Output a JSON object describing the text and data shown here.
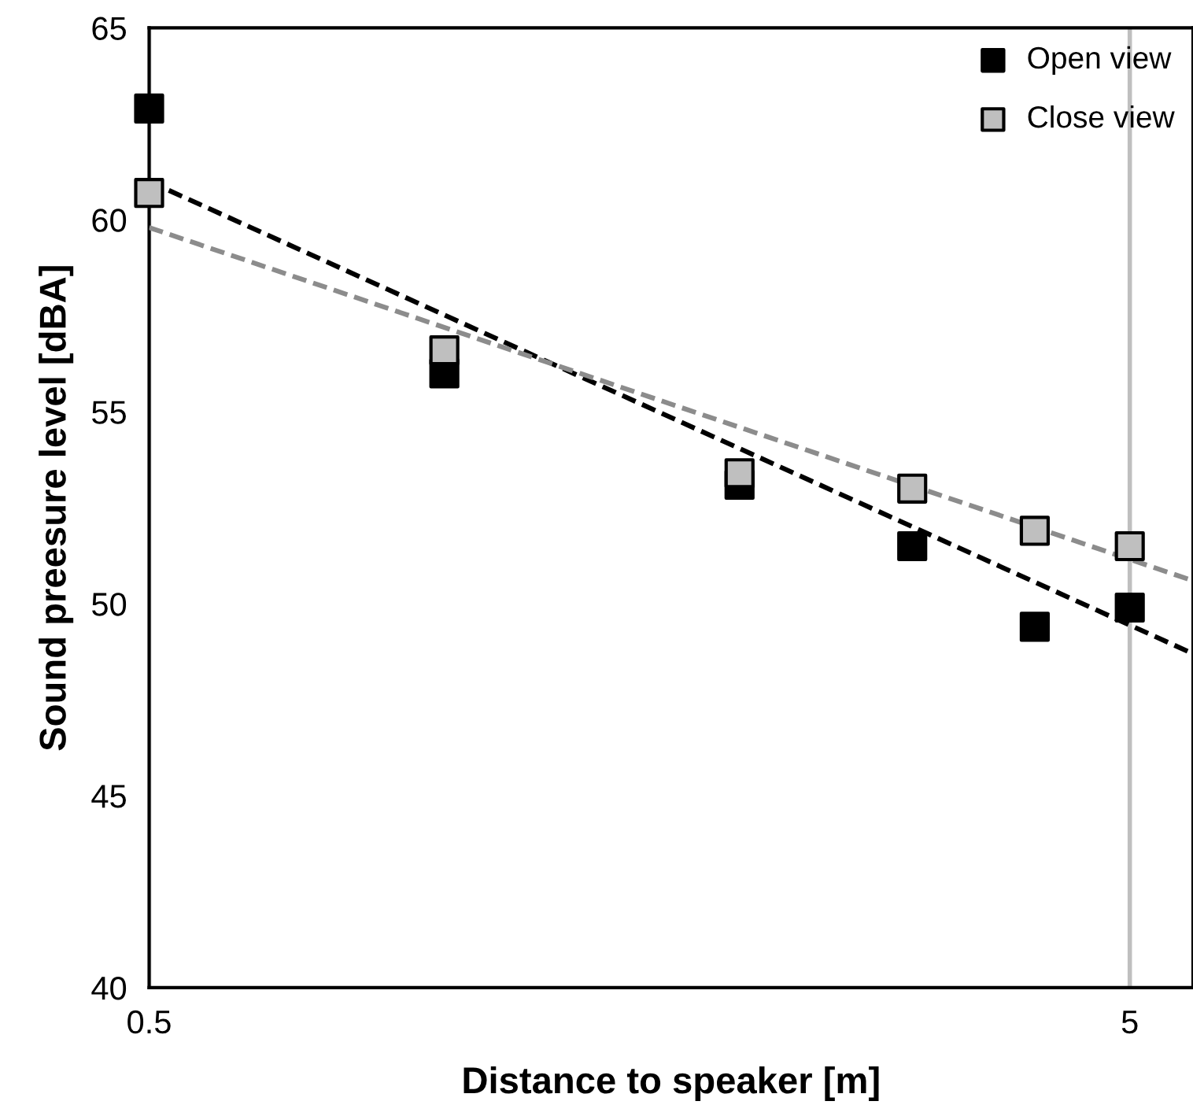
{
  "chart_data": {
    "type": "scatter",
    "xlabel": "Distance to speaker [m]",
    "ylabel": "Sound preesure level [dBA]",
    "log": "x",
    "xlim": [
      0.5,
      5.8
    ],
    "xticks": [
      0.5,
      5
    ],
    "ylim": [
      40,
      65
    ],
    "yticks": [
      40,
      45,
      50,
      55,
      60,
      65
    ],
    "grid": "x",
    "legend": "top right",
    "series": [
      {
        "name": "Open view",
        "marker": "square",
        "color": "#000000",
        "x": [
          0.5,
          1,
          2,
          3,
          4,
          5
        ],
        "values": [
          62.9,
          56.0,
          53.1,
          51.5,
          49.4,
          49.9
        ]
      },
      {
        "name": "Close view",
        "marker": "square",
        "color": "#bfbfbf",
        "x": [
          0.5,
          1,
          2,
          3,
          4,
          5
        ],
        "values": [
          60.7,
          56.6,
          53.4,
          53.0,
          51.9,
          51.5
        ]
      },
      {
        "type": "line",
        "marker": "none",
        "line_style": "dashed",
        "color": "#000000",
        "x": [
          0.5,
          5.8
        ],
        "values": [
          61.0,
          48.7
        ]
      },
      {
        "type": "line",
        "marker": "none",
        "line_style": "dashed",
        "color": "#8c8c8c",
        "x": [
          0.5,
          5.8
        ],
        "values": [
          59.8,
          50.6
        ]
      }
    ]
  }
}
